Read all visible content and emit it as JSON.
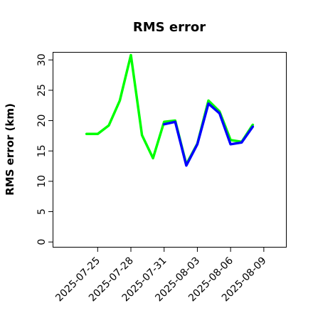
{
  "chart_data": {
    "type": "line",
    "title": "RMS error",
    "xlabel": "",
    "ylabel": "RMS error (km)",
    "ylim": [
      -0.8,
      31.2
    ],
    "yticks": [
      0,
      5,
      10,
      15,
      20,
      25,
      30
    ],
    "xlim": [
      "2025-07-21",
      "2025-08-11"
    ],
    "xticks": [
      "2025-07-25",
      "2025-07-28",
      "2025-07-31",
      "2025-08-03",
      "2025-08-06",
      "2025-08-09"
    ],
    "highlight_tick": "2025-07-31",
    "highlight_color": "#228b22",
    "grid": false,
    "series": [
      {
        "color": "#00ff00",
        "x": [
          "2025-07-24",
          "2025-07-25",
          "2025-07-26",
          "2025-07-27",
          "2025-07-28",
          "2025-07-29",
          "2025-07-30",
          "2025-07-31",
          "2025-08-01",
          "2025-08-02",
          "2025-08-03",
          "2025-08-04",
          "2025-08-05",
          "2025-08-06",
          "2025-08-07",
          "2025-08-08"
        ],
        "y": [
          17.8,
          17.8,
          19.2,
          23.3,
          30.8,
          17.6,
          13.8,
          19.8,
          20.0,
          12.8,
          16.2,
          23.3,
          21.5,
          16.8,
          16.5,
          19.3
        ]
      },
      {
        "color": "#0000ff",
        "x": [
          "2025-07-31",
          "2025-08-01",
          "2025-08-02",
          "2025-08-03",
          "2025-08-04",
          "2025-08-05",
          "2025-08-06",
          "2025-08-07",
          "2025-08-08"
        ],
        "y": [
          19.4,
          19.8,
          12.6,
          16.1,
          22.8,
          21.2,
          16.1,
          16.4,
          19.0
        ]
      }
    ]
  }
}
